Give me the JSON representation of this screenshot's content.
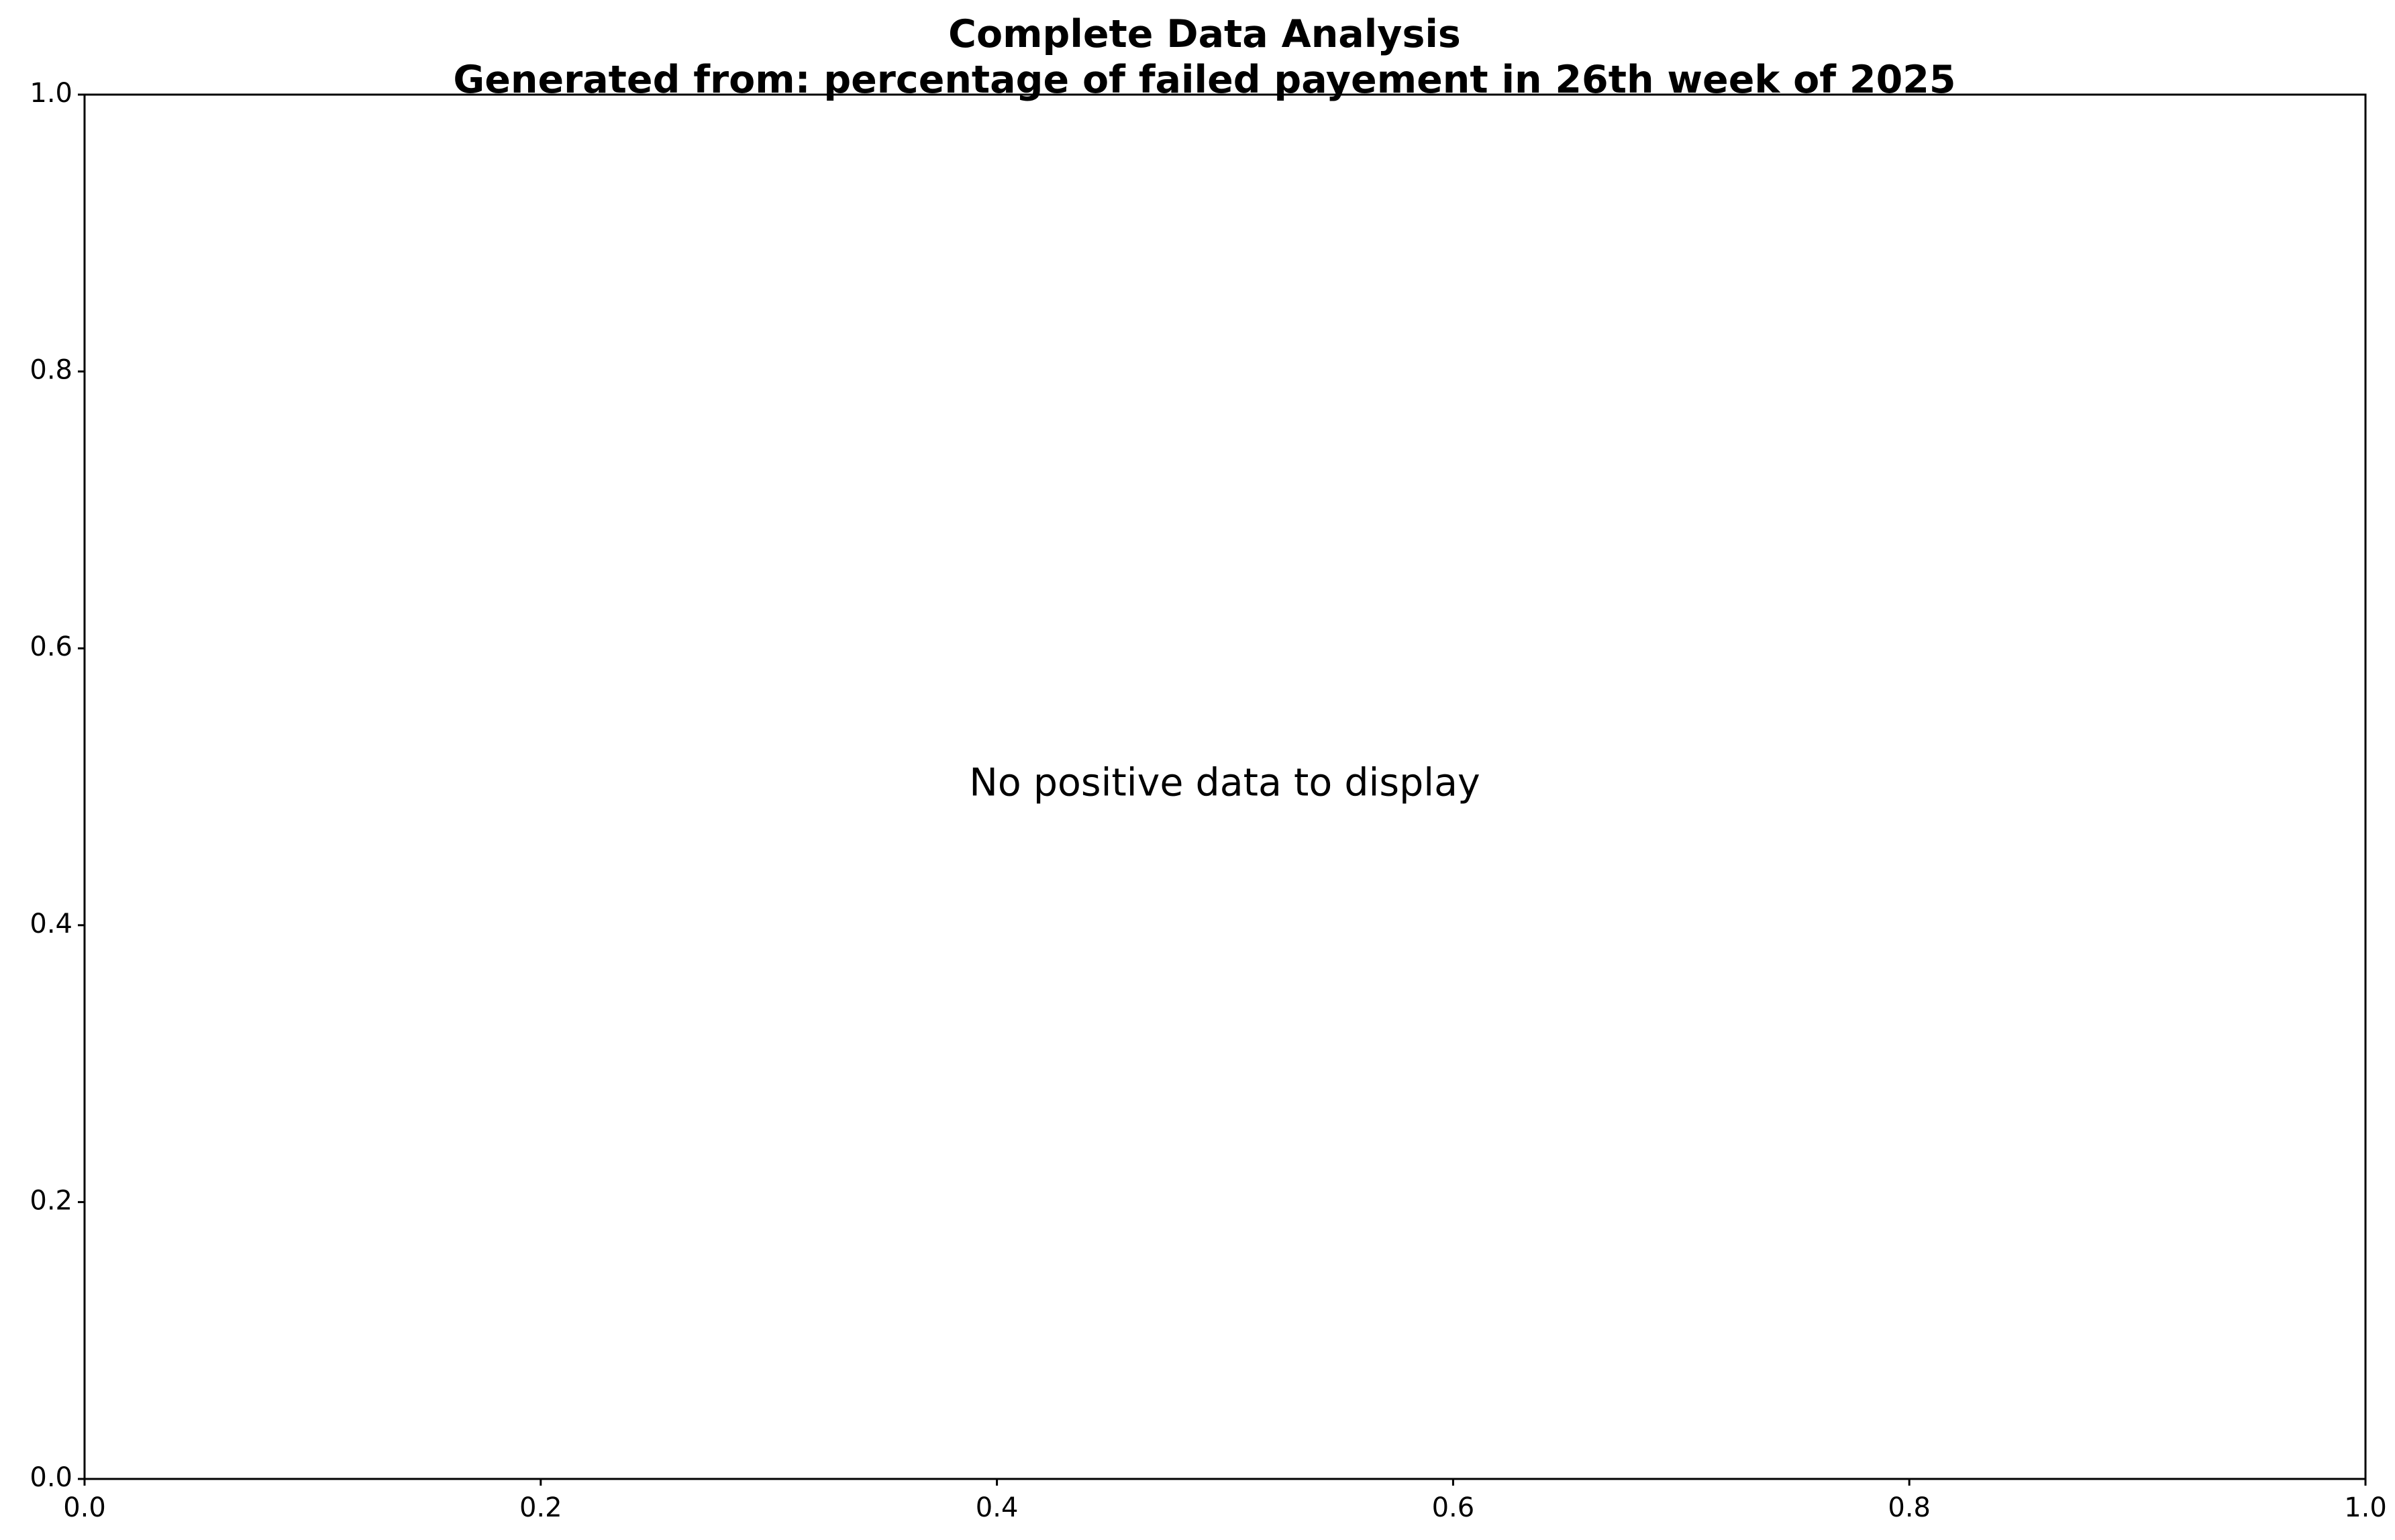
{
  "chart_data": {
    "type": "bar",
    "title": "Complete Data Analysis",
    "subtitle": "Generated from: percentage of failed payement in 26th week of 2025",
    "annotation": "No positive data to display",
    "xlim": [
      0.0,
      1.0
    ],
    "ylim": [
      0.0,
      1.0
    ],
    "xticks": [
      "0.0",
      "0.2",
      "0.4",
      "0.6",
      "0.8",
      "1.0"
    ],
    "yticks": [
      "0.0",
      "0.2",
      "0.4",
      "0.6",
      "0.8",
      "1.0"
    ],
    "xlabel": "",
    "ylabel": "",
    "grid": false,
    "series": []
  }
}
